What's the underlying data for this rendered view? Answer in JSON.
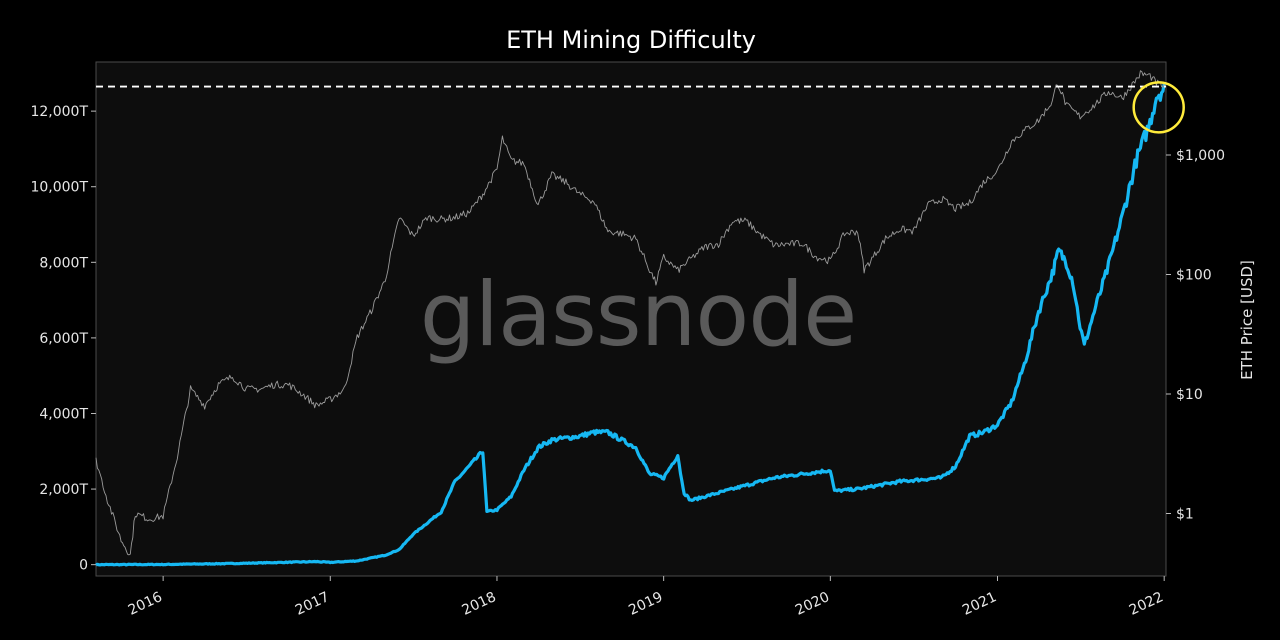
{
  "chart_data": {
    "type": "line",
    "title": "ETH Mining Difficulty",
    "watermark": "glassnode",
    "x_axis": {
      "ticks": [
        "2016",
        "2017",
        "2018",
        "2019",
        "2020",
        "2021",
        "2022"
      ],
      "range": [
        "2015-08-07",
        "2022-01-05"
      ]
    },
    "y_left": {
      "ticks": [
        "0",
        "2,000T",
        "4,000T",
        "6,000T",
        "8,000T",
        "10,000T",
        "12,000T"
      ],
      "range": [
        -300,
        13300
      ]
    },
    "y_right": {
      "label": "ETH Price [USD]",
      "scale": "log",
      "ticks": [
        "$1",
        "$10",
        "$100",
        "$1,000"
      ],
      "range": [
        0.3,
        6000
      ]
    },
    "reference_line": {
      "value": 12650,
      "style": "dashed",
      "color": "#ffffff"
    },
    "highlight_circle": {
      "x": "2021-12-20",
      "y": 12100,
      "color": "#ffeb3b"
    },
    "series": [
      {
        "axis": "left",
        "color": "#16b8f3",
        "points": [
          [
            "2015-08-07",
            0
          ],
          [
            "2016-01-01",
            5
          ],
          [
            "2016-06-01",
            30
          ],
          [
            "2016-12-01",
            80
          ],
          [
            "2017-01-01",
            60
          ],
          [
            "2017-03-01",
            100
          ],
          [
            "2017-05-01",
            250
          ],
          [
            "2017-06-01",
            400
          ],
          [
            "2017-07-01",
            800
          ],
          [
            "2017-08-01",
            1100
          ],
          [
            "2017-09-01",
            1400
          ],
          [
            "2017-10-01",
            2200
          ],
          [
            "2017-11-01",
            2600
          ],
          [
            "2017-12-01",
            3000
          ],
          [
            "2017-12-10",
            1400
          ],
          [
            "2018-01-01",
            1450
          ],
          [
            "2018-02-01",
            1800
          ],
          [
            "2018-03-01",
            2500
          ],
          [
            "2018-04-01",
            3100
          ],
          [
            "2018-05-01",
            3300
          ],
          [
            "2018-06-01",
            3350
          ],
          [
            "2018-07-01",
            3400
          ],
          [
            "2018-08-01",
            3500
          ],
          [
            "2018-09-01",
            3500
          ],
          [
            "2018-10-01",
            3300
          ],
          [
            "2018-11-01",
            3100
          ],
          [
            "2018-12-01",
            2400
          ],
          [
            "2019-01-01",
            2300
          ],
          [
            "2019-02-01",
            2900
          ],
          [
            "2019-02-10",
            2200
          ],
          [
            "2019-02-15",
            1900
          ],
          [
            "2019-03-01",
            1700
          ],
          [
            "2019-05-01",
            1900
          ],
          [
            "2019-07-01",
            2100
          ],
          [
            "2019-09-01",
            2300
          ],
          [
            "2019-11-01",
            2400
          ],
          [
            "2020-01-01",
            2500
          ],
          [
            "2020-01-10",
            1950
          ],
          [
            "2020-03-01",
            2000
          ],
          [
            "2020-06-01",
            2200
          ],
          [
            "2020-09-01",
            2300
          ],
          [
            "2020-10-01",
            2600
          ],
          [
            "2020-11-01",
            3400
          ],
          [
            "2020-12-01",
            3500
          ],
          [
            "2021-01-01",
            3700
          ],
          [
            "2021-02-01",
            4300
          ],
          [
            "2021-03-01",
            5300
          ],
          [
            "2021-04-01",
            6700
          ],
          [
            "2021-05-01",
            7700
          ],
          [
            "2021-05-15",
            8300
          ],
          [
            "2021-06-01",
            8000
          ],
          [
            "2021-06-15",
            7500
          ],
          [
            "2021-07-01",
            6300
          ],
          [
            "2021-07-10",
            5800
          ],
          [
            "2021-08-01",
            6700
          ],
          [
            "2021-09-01",
            7900
          ],
          [
            "2021-10-01",
            9200
          ],
          [
            "2021-11-01",
            10700
          ],
          [
            "2021-12-01",
            11700
          ],
          [
            "2021-12-15",
            12400
          ],
          [
            "2022-01-01",
            12600
          ]
        ]
      },
      {
        "axis": "right",
        "color": "#9a9a9a",
        "points": [
          [
            "2015-08-07",
            2.8
          ],
          [
            "2015-09-01",
            1.3
          ],
          [
            "2015-10-01",
            0.6
          ],
          [
            "2015-10-21",
            0.45
          ],
          [
            "2015-11-01",
            1.0
          ],
          [
            "2015-12-01",
            0.9
          ],
          [
            "2016-01-01",
            0.95
          ],
          [
            "2016-02-01",
            3.0
          ],
          [
            "2016-03-01",
            11
          ],
          [
            "2016-04-01",
            8
          ],
          [
            "2016-05-01",
            12
          ],
          [
            "2016-06-01",
            14
          ],
          [
            "2016-07-01",
            11
          ],
          [
            "2016-08-01",
            11
          ],
          [
            "2016-09-01",
            12
          ],
          [
            "2016-10-01",
            12
          ],
          [
            "2016-11-01",
            10
          ],
          [
            "2016-12-01",
            8
          ],
          [
            "2017-01-01",
            9
          ],
          [
            "2017-02-01",
            11
          ],
          [
            "2017-03-01",
            30
          ],
          [
            "2017-04-01",
            50
          ],
          [
            "2017-05-01",
            90
          ],
          [
            "2017-06-01",
            300
          ],
          [
            "2017-07-01",
            210
          ],
          [
            "2017-08-01",
            300
          ],
          [
            "2017-09-01",
            290
          ],
          [
            "2017-10-01",
            300
          ],
          [
            "2017-11-01",
            330
          ],
          [
            "2017-12-01",
            470
          ],
          [
            "2018-01-01",
            760
          ],
          [
            "2018-01-13",
            1380
          ],
          [
            "2018-02-01",
            900
          ],
          [
            "2018-03-01",
            850
          ],
          [
            "2018-04-01",
            380
          ],
          [
            "2018-05-01",
            680
          ],
          [
            "2018-06-01",
            590
          ],
          [
            "2018-07-01",
            470
          ],
          [
            "2018-08-01",
            410
          ],
          [
            "2018-09-01",
            230
          ],
          [
            "2018-10-01",
            220
          ],
          [
            "2018-11-01",
            200
          ],
          [
            "2018-12-01",
            110
          ],
          [
            "2018-12-15",
            85
          ],
          [
            "2019-01-01",
            140
          ],
          [
            "2019-02-01",
            108
          ],
          [
            "2019-03-01",
            135
          ],
          [
            "2019-04-01",
            170
          ],
          [
            "2019-05-01",
            180
          ],
          [
            "2019-06-01",
            280
          ],
          [
            "2019-07-01",
            280
          ],
          [
            "2019-08-01",
            215
          ],
          [
            "2019-09-01",
            175
          ],
          [
            "2019-10-01",
            180
          ],
          [
            "2019-11-01",
            182
          ],
          [
            "2019-12-01",
            140
          ],
          [
            "2020-01-01",
            130
          ],
          [
            "2020-02-01",
            220
          ],
          [
            "2020-03-01",
            230
          ],
          [
            "2020-03-15",
            110
          ],
          [
            "2020-04-01",
            135
          ],
          [
            "2020-05-01",
            200
          ],
          [
            "2020-06-01",
            240
          ],
          [
            "2020-07-01",
            230
          ],
          [
            "2020-08-01",
            380
          ],
          [
            "2020-09-01",
            430
          ],
          [
            "2020-10-01",
            355
          ],
          [
            "2020-11-01",
            395
          ],
          [
            "2020-12-01",
            590
          ],
          [
            "2021-01-01",
            740
          ],
          [
            "2021-02-01",
            1300
          ],
          [
            "2021-03-01",
            1600
          ],
          [
            "2021-04-01",
            1950
          ],
          [
            "2021-05-01",
            2800
          ],
          [
            "2021-05-12",
            4100
          ],
          [
            "2021-06-01",
            2600
          ],
          [
            "2021-07-01",
            2100
          ],
          [
            "2021-08-01",
            2600
          ],
          [
            "2021-09-01",
            3400
          ],
          [
            "2021-10-01",
            3000
          ],
          [
            "2021-11-01",
            4300
          ],
          [
            "2021-11-10",
            4800
          ],
          [
            "2021-12-01",
            4600
          ],
          [
            "2021-12-15",
            4000
          ],
          [
            "2022-01-01",
            3750
          ]
        ]
      }
    ]
  }
}
